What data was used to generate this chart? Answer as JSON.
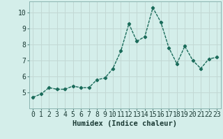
{
  "x": [
    0,
    1,
    2,
    3,
    4,
    5,
    6,
    7,
    8,
    9,
    10,
    11,
    12,
    13,
    14,
    15,
    16,
    17,
    18,
    19,
    20,
    21,
    22,
    23
  ],
  "y": [
    4.7,
    4.9,
    5.3,
    5.2,
    5.2,
    5.4,
    5.3,
    5.3,
    5.8,
    5.9,
    6.5,
    7.6,
    9.3,
    8.2,
    8.5,
    10.3,
    9.4,
    7.8,
    6.8,
    7.9,
    7.0,
    6.5,
    7.1,
    7.2
  ],
  "line_color": "#1a6b5a",
  "marker": "D",
  "marker_size": 2.2,
  "bg_color": "#d4eeea",
  "grid_color": "#c2d8d4",
  "xlabel": "Humidex (Indice chaleur)",
  "ylim": [
    4.0,
    10.7
  ],
  "xlim": [
    -0.5,
    23.5
  ],
  "yticks": [
    5,
    6,
    7,
    8,
    9,
    10
  ],
  "xticks": [
    0,
    1,
    2,
    3,
    4,
    5,
    6,
    7,
    8,
    9,
    10,
    11,
    12,
    13,
    14,
    15,
    16,
    17,
    18,
    19,
    20,
    21,
    22,
    23
  ],
  "xlabel_fontsize": 7.5,
  "tick_fontsize": 7.0,
  "line_width": 1.0
}
